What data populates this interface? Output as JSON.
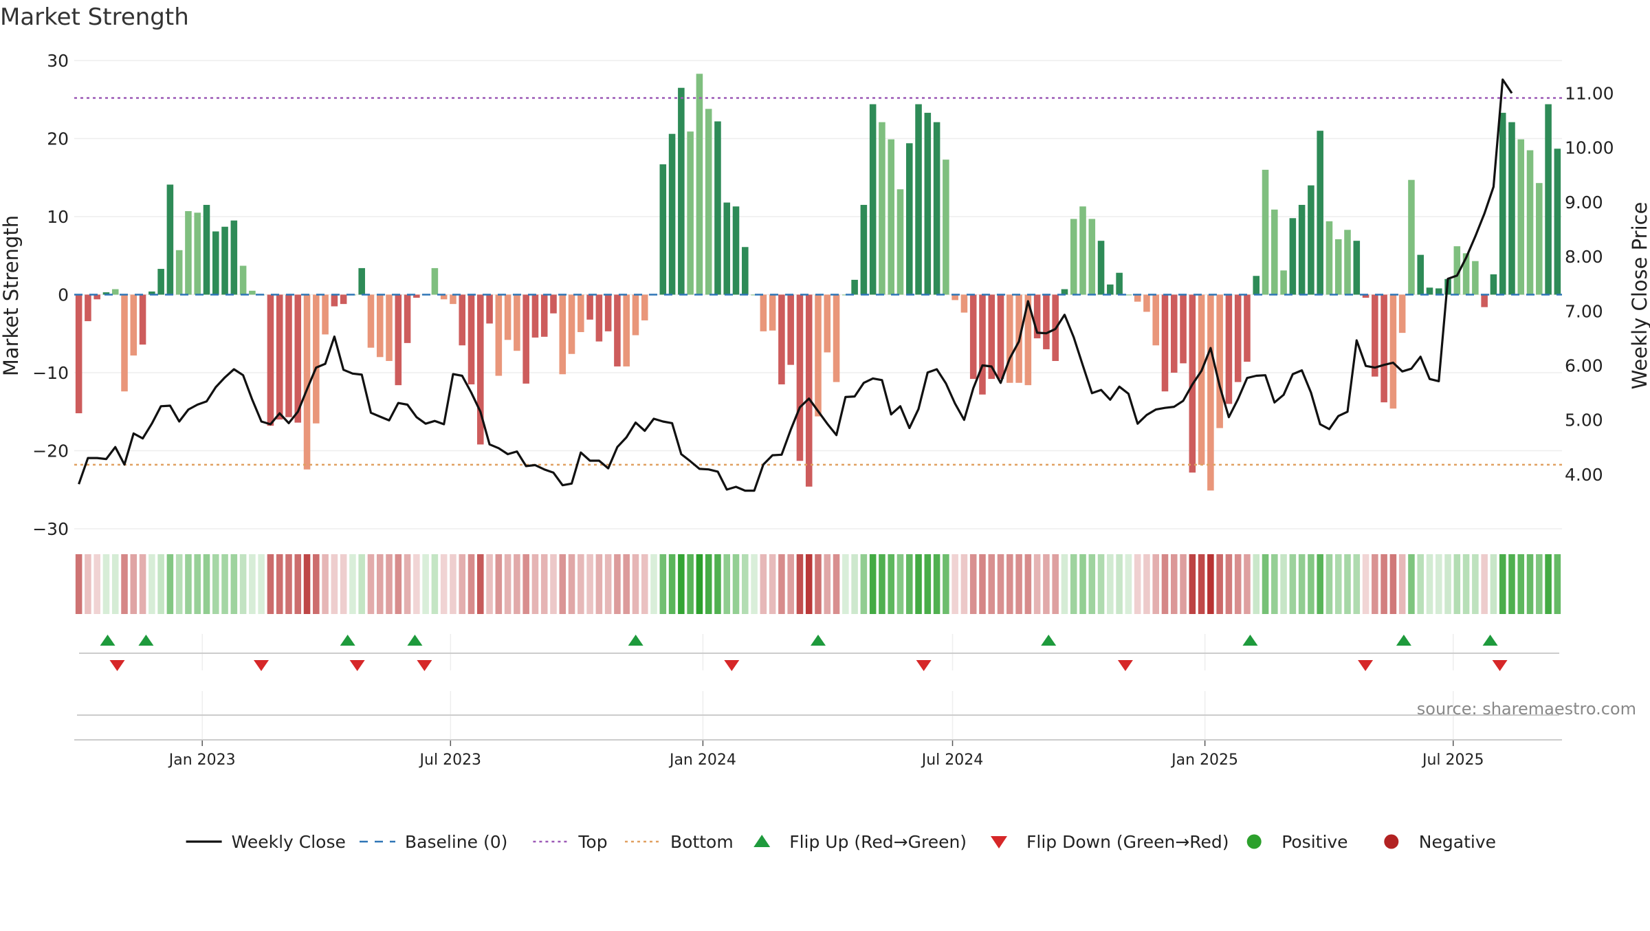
{
  "chart_data": {
    "type": "bar",
    "title": "Market Strength",
    "ylabel": "Market Strength",
    "ylabel_right": "Weekly Close Price",
    "ylim": [
      -30,
      30
    ],
    "ylim_right": [
      3.0,
      11.6
    ],
    "yticks": [
      30,
      20,
      10,
      0,
      -10,
      -20,
      -30
    ],
    "yticks_labels": [
      "30",
      "20",
      "10",
      "0",
      "−10",
      "−20",
      "−30"
    ],
    "yticks_right": [
      11,
      10,
      9,
      8,
      7,
      6,
      5,
      4
    ],
    "yticks_right_labels": [
      "11.00",
      "10.00",
      "9.00",
      "8.00",
      "7.00",
      "6.00",
      "5.00",
      "4.00"
    ],
    "x_start": "2022-10-03",
    "x_end": "2025-09-15",
    "x_ticks": [
      {
        "date": "2023-01-01",
        "label": "Jan 2023"
      },
      {
        "date": "2023-07-01",
        "label": "Jul 2023"
      },
      {
        "date": "2024-01-01",
        "label": "Jan 2024"
      },
      {
        "date": "2024-07-01",
        "label": "Jul 2024"
      },
      {
        "date": "2025-01-01",
        "label": "Jan 2025"
      },
      {
        "date": "2025-07-01",
        "label": "Jul 2025"
      }
    ],
    "top_line": 25.2,
    "bottom_line": -21.8,
    "series": [
      {
        "name": "Market Strength",
        "values": [
          -15.2,
          -3.4,
          -0.6,
          0.3,
          0.7,
          -12.4,
          -7.8,
          -6.4,
          0.4,
          3.3,
          14.1,
          5.7,
          10.7,
          10.5,
          11.5,
          8.1,
          8.7,
          9.5,
          3.7,
          0.5,
          0.0,
          -16.8,
          -16.0,
          -15.7,
          -16.4,
          -22.4,
          -16.5,
          -5.1,
          -1.5,
          -1.2,
          0.0,
          3.4,
          -6.8,
          -8.0,
          -8.5,
          -11.6,
          -6.2,
          -0.4,
          0.0,
          3.4,
          -0.6,
          -1.2,
          -6.5,
          -11.5,
          -19.2,
          -3.7,
          -10.4,
          -5.8,
          -7.2,
          -11.4,
          -5.5,
          -5.4,
          -2.4,
          -10.2,
          -7.6,
          -4.8,
          -3.2,
          -6.0,
          -4.7,
          -9.2,
          -9.2,
          -5.2,
          -3.3,
          0.0,
          16.7,
          20.6,
          26.5,
          20.9,
          28.3,
          23.8,
          22.2,
          11.8,
          11.3,
          6.1,
          0.0,
          -4.7,
          -4.6,
          -11.5,
          -9.0,
          -21.3,
          -24.6,
          -15.6,
          -7.4,
          -11.2,
          0.0,
          1.9,
          11.5,
          24.4,
          22.1,
          19.9,
          13.5,
          19.4,
          24.4,
          23.3,
          22.1,
          17.3,
          -0.7,
          -2.3,
          -10.8,
          -12.8,
          -10.8,
          -10.8,
          -11.3,
          -11.3,
          -11.6,
          -5.6,
          -7.0,
          -8.5,
          0.7,
          9.7,
          11.3,
          9.7,
          6.9,
          1.3,
          2.8,
          0.0,
          -0.9,
          -2.2,
          -6.5,
          -12.4,
          -10.0,
          -8.8,
          -22.8,
          -21.8,
          -25.1,
          -17.1,
          -14.0,
          -11.2,
          -8.6,
          2.4,
          16.0,
          10.9,
          3.1,
          9.8,
          11.5,
          14.0,
          21.0,
          9.4,
          7.1,
          8.3,
          6.9,
          -0.4,
          -10.5,
          -13.8,
          -14.6,
          -4.9,
          14.7,
          5.1,
          0.9,
          0.8,
          2.0,
          6.2,
          5.3,
          4.3,
          -1.6,
          2.6,
          23.3,
          22.1,
          19.9,
          18.5,
          14.3,
          24.4,
          18.7
        ]
      },
      {
        "name": "Weekly Close",
        "values": [
          3.82,
          4.3,
          4.3,
          4.28,
          4.5,
          4.18,
          4.75,
          4.66,
          4.93,
          5.25,
          5.26,
          4.97,
          5.19,
          5.28,
          5.34,
          5.6,
          5.78,
          5.93,
          5.82,
          5.37,
          4.97,
          4.92,
          5.12,
          4.94,
          5.15,
          5.56,
          5.96,
          6.03,
          6.53,
          5.92,
          5.85,
          5.83,
          5.13,
          5.06,
          4.99,
          5.31,
          5.28,
          5.05,
          4.93,
          4.98,
          4.92,
          5.84,
          5.81,
          5.5,
          5.15,
          4.55,
          4.48,
          4.37,
          4.42,
          4.15,
          4.17,
          4.09,
          4.03,
          3.8,
          3.83,
          4.4,
          4.25,
          4.25,
          4.11,
          4.5,
          4.68,
          4.95,
          4.8,
          5.02,
          4.97,
          4.94,
          4.37,
          4.24,
          4.1,
          4.09,
          4.05,
          3.72,
          3.77,
          3.7,
          3.7,
          4.18,
          4.35,
          4.36,
          4.82,
          5.23,
          5.39,
          5.16,
          4.93,
          4.72,
          5.42,
          5.43,
          5.68,
          5.76,
          5.73,
          5.1,
          5.25,
          4.85,
          5.2,
          5.87,
          5.93,
          5.67,
          5.3,
          5.0,
          5.58,
          6.0,
          5.98,
          5.68,
          6.13,
          6.44,
          7.18,
          6.6,
          6.59,
          6.67,
          6.93,
          6.52,
          6.0,
          5.49,
          5.55,
          5.37,
          5.61,
          5.48,
          4.93,
          5.09,
          5.19,
          5.22,
          5.24,
          5.35,
          5.65,
          5.9,
          6.32,
          5.62,
          5.05,
          5.38,
          5.77,
          5.81,
          5.82,
          5.32,
          5.46,
          5.84,
          5.91,
          5.5,
          4.92,
          4.83,
          5.07,
          5.15,
          6.46,
          5.99,
          5.96,
          6.01,
          6.05,
          5.89,
          5.94,
          6.16,
          5.75,
          5.71,
          7.59,
          7.65,
          7.98,
          8.37,
          8.79,
          9.28,
          11.25,
          11.0
        ]
      }
    ],
    "flip_up_dates": [
      "2022-10-24",
      "2022-11-21",
      "2023-04-17",
      "2023-06-05",
      "2023-11-13",
      "2024-03-25",
      "2024-09-09",
      "2025-02-03",
      "2025-05-26",
      "2025-07-28"
    ],
    "flip_down_dates": [
      "2022-10-31",
      "2023-02-13",
      "2023-04-24",
      "2023-06-12",
      "2024-01-22",
      "2024-06-10",
      "2024-11-04",
      "2025-04-28",
      "2025-08-04"
    ],
    "legend_position": "bottom",
    "legend": [
      {
        "key": "weekly_close",
        "label": "Weekly Close",
        "kind": "line",
        "color": "#111111"
      },
      {
        "key": "baseline",
        "label": "Baseline (0)",
        "kind": "dash",
        "color": "#2e75b6"
      },
      {
        "key": "top",
        "label": "Top",
        "kind": "dot",
        "color": "#9b59b6"
      },
      {
        "key": "bottom",
        "label": "Bottom",
        "kind": "dot",
        "color": "#e0a060"
      },
      {
        "key": "flip_up",
        "label": "Flip Up (Red→Green)",
        "kind": "tri-up",
        "color": "#1e9a3c"
      },
      {
        "key": "flip_down",
        "label": "Flip Down (Green→Red)",
        "kind": "tri-down",
        "color": "#d62728"
      },
      {
        "key": "positive",
        "label": "Positive",
        "kind": "circle",
        "color": "#2ca02c"
      },
      {
        "key": "negative",
        "label": "Negative",
        "kind": "circle",
        "color": "#b22222"
      }
    ],
    "source": "source: sharemaestro.com",
    "colors": {
      "pos_strong": "#2e8b57",
      "pos_light": "#7fbf7f",
      "neg_strong": "#cd5c5c",
      "neg_light": "#e9967a",
      "price_line": "#111111",
      "top_line": "#9b59b6",
      "bottom_line": "#e0a060",
      "baseline": "#2e75b6"
    }
  }
}
